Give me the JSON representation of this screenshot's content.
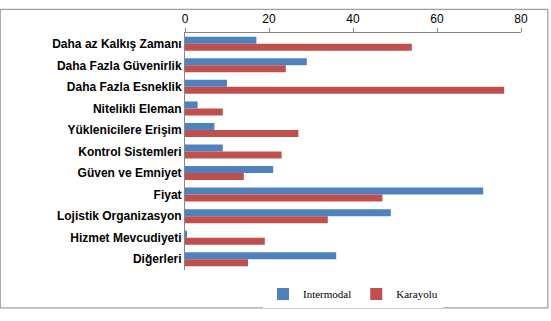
{
  "chart_data": {
    "type": "bar",
    "orientation": "horizontal",
    "categories": [
      "Daha az Kalkış Zamanı",
      "Daha Fazla Güvenirlik",
      "Daha Fazla Esneklik",
      "Nitelikli Eleman",
      "Yüklenicilere Erişim",
      "Kontrol Sistemleri",
      "Güven ve Emniyet",
      "Fiyat",
      "Lojistik Organizasyon",
      "Hizmet Mevcudiyeti",
      "Diğerleri"
    ],
    "series": [
      {
        "name": "Intermodal",
        "color": "#4f81bd",
        "values": [
          17,
          29,
          10,
          3,
          7,
          9,
          21,
          71,
          49,
          0.5,
          36
        ]
      },
      {
        "name": "Karayolu",
        "color": "#c0504d",
        "values": [
          54,
          24,
          76,
          9,
          27,
          23,
          14,
          47,
          34,
          19,
          15
        ]
      }
    ],
    "xlim": [
      0,
      80
    ],
    "xticks": [
      0,
      20,
      40,
      60,
      80
    ],
    "grid": false,
    "legend": "bottom"
  }
}
